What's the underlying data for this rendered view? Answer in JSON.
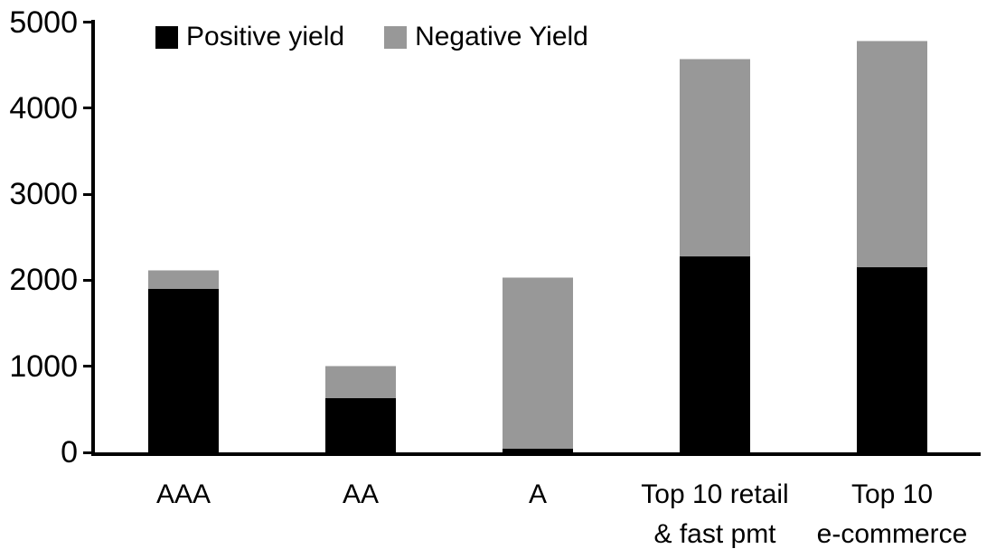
{
  "chart_data": {
    "type": "bar",
    "stacked": true,
    "title": "",
    "xlabel": "",
    "ylabel": "",
    "categories": [
      "AAA",
      "AA",
      "A",
      "Top 10 retail\n& fast pmt",
      "Top 10\ne-commerce"
    ],
    "series": [
      {
        "name": "Positive yield",
        "color": "#000000",
        "values": [
          1900,
          630,
          40,
          2280,
          2150
        ]
      },
      {
        "name": "Negative Yield",
        "color": "#989898",
        "values": [
          220,
          380,
          2000,
          2300,
          2630
        ]
      }
    ],
    "totals": [
      2120,
      1010,
      2040,
      4580,
      4780
    ],
    "ylim": [
      0,
      5000
    ],
    "yticks": [
      0,
      1000,
      2000,
      3000,
      4000,
      5000
    ],
    "grid": false,
    "legend_position": "top-left-inside",
    "axis_color": "#000000",
    "background_color": "#ffffff"
  }
}
